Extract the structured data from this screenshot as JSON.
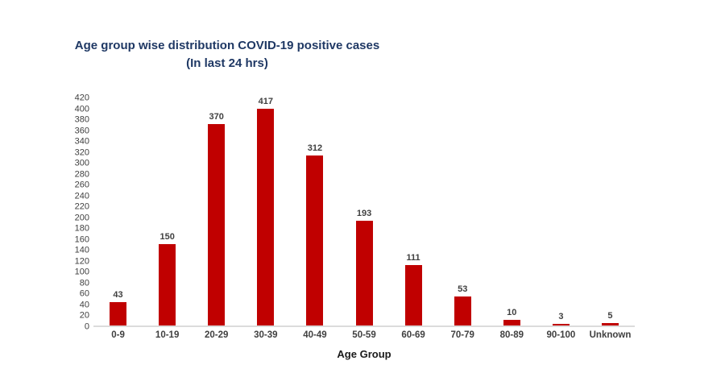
{
  "chart_data": {
    "type": "bar",
    "title": "Age group wise distribution COVID-19 positive cases",
    "subtitle": "(In last 24 hrs)",
    "categories": [
      "0-9",
      "10-19",
      "20-29",
      "30-39",
      "40-49",
      "50-59",
      "60-69",
      "70-79",
      "80-89",
      "90-100",
      "Unknown"
    ],
    "values": [
      43,
      150,
      370,
      417,
      312,
      193,
      111,
      53,
      10,
      3,
      5
    ],
    "xlabel": "Age Group",
    "ylabel": "",
    "ylim": [
      0,
      420
    ],
    "ytick_step": 20,
    "grid": false,
    "legend": false,
    "colors": {
      "bar": "#c00000",
      "title": "#1f3864",
      "tick_label": "#404040",
      "data_label": "#404040",
      "category_label": "#404040",
      "axis_line": "#dcdcdc",
      "xlabel_text": "#1a1a1a"
    }
  }
}
